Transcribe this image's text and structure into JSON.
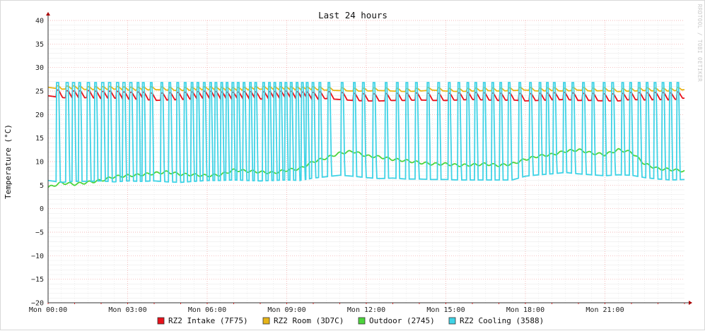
{
  "chart_data": {
    "type": "line",
    "title": "Last 24 hours",
    "ylabel": "Temperature (°C)",
    "ylim": [
      -20,
      40
    ],
    "yticks": [
      40,
      35,
      30,
      25,
      20,
      15,
      10,
      5,
      0,
      -5,
      -10,
      -15,
      -20
    ],
    "xlim": [
      0,
      24
    ],
    "xticks": [
      {
        "hour": 0,
        "label": "Mon 00:00"
      },
      {
        "hour": 3,
        "label": "Mon 03:00"
      },
      {
        "hour": 6,
        "label": "Mon 06:00"
      },
      {
        "hour": 9,
        "label": "Mon 09:00"
      },
      {
        "hour": 12,
        "label": "Mon 12:00"
      },
      {
        "hour": 15,
        "label": "Mon 15:00"
      },
      {
        "hour": 18,
        "label": "Mon 18:00"
      },
      {
        "hour": 21,
        "label": "Mon 21:00"
      }
    ],
    "grid": true,
    "legend_position": "bottom",
    "watermark": "RRDTOOL / TOBI OETIKER",
    "cooling_spike_hours": [
      0.32,
      0.68,
      0.92,
      1.15,
      1.48,
      1.75,
      2.02,
      2.28,
      2.58,
      2.82,
      3.08,
      3.35,
      3.55,
      3.85,
      4.25,
      4.55,
      4.85,
      5.12,
      5.38,
      5.6,
      5.85,
      6.08,
      6.28,
      6.5,
      6.7,
      6.92,
      7.12,
      7.35,
      7.58,
      7.78,
      8.08,
      8.3,
      8.5,
      8.72,
      8.92,
      9.12,
      9.35,
      9.55,
      9.72,
      9.95,
      10.2,
      10.55,
      11.05,
      11.5,
      11.85,
      12.25,
      12.7,
      13.12,
      13.48,
      13.85,
      14.28,
      14.68,
      15.08,
      15.45,
      15.78,
      16.08,
      16.4,
      16.72,
      17.02,
      17.35,
      17.75,
      18.15,
      18.5,
      18.78,
      19.05,
      19.42,
      19.75,
      20.15,
      20.5,
      20.92,
      21.25,
      21.62,
      21.92,
      22.25,
      22.55,
      22.85,
      23.15,
      23.42,
      23.7
    ],
    "series": [
      {
        "name": "RZ2 Intake (7F75)",
        "color": "#e8111a",
        "x": [
          0,
          0.5,
          1,
          1.5,
          2,
          2.5,
          3,
          3.5,
          4,
          4.5,
          5,
          5.5,
          6,
          6.5,
          7,
          7.5,
          8,
          8.5,
          9,
          9.5,
          10,
          10.5,
          11,
          11.5,
          12,
          12.5,
          13,
          13.5,
          14,
          14.5,
          15,
          15.5,
          16,
          16.5,
          17,
          17.5,
          18,
          18.5,
          19,
          19.5,
          20,
          20.5,
          21,
          21.5,
          22,
          22.5,
          23,
          23.5,
          24
        ],
        "y": [
          24.0,
          23.6,
          23.5,
          23.6,
          23.4,
          23.5,
          23.2,
          23.3,
          23.0,
          23.1,
          23.2,
          23.3,
          23.5,
          23.3,
          23.2,
          23.4,
          23.3,
          23.4,
          23.5,
          23.3,
          23.2,
          23.4,
          23.2,
          23.0,
          22.9,
          22.9,
          23.0,
          23.0,
          23.1,
          23.0,
          23.0,
          23.1,
          23.2,
          23.1,
          23.0,
          23.1,
          22.9,
          23.0,
          23.1,
          23.2,
          23.0,
          23.0,
          22.9,
          22.9,
          23.2,
          23.1,
          23.2,
          23.1,
          23.5
        ]
      },
      {
        "name": "RZ2 Room (3D7C)",
        "color": "#e6b417",
        "x": [
          0,
          0.5,
          1,
          1.5,
          2,
          2.5,
          3,
          3.5,
          4,
          4.5,
          5,
          5.5,
          6,
          6.5,
          7,
          7.5,
          8,
          8.5,
          9,
          9.5,
          10,
          10.5,
          11,
          11.5,
          12,
          12.5,
          13,
          13.5,
          14,
          14.5,
          15,
          15.5,
          16,
          16.5,
          17,
          17.5,
          18,
          18.5,
          19,
          19.5,
          20,
          20.5,
          21,
          21.5,
          22,
          22.5,
          23,
          23.5,
          24
        ],
        "y": [
          25.8,
          25.4,
          25.5,
          25.3,
          25.3,
          25.4,
          25.2,
          25.2,
          25.3,
          25.2,
          25.1,
          25.2,
          25.3,
          25.2,
          25.1,
          25.2,
          25.4,
          25.3,
          25.3,
          25.2,
          25.3,
          25.2,
          25.1,
          25.0,
          25.0,
          25.1,
          25.0,
          24.9,
          25.0,
          25.2,
          25.0,
          24.9,
          25.0,
          25.1,
          25.0,
          25.1,
          25.2,
          25.0,
          25.1,
          25.0,
          25.2,
          25.0,
          25.1,
          24.9,
          25.0,
          25.1,
          25.0,
          25.0,
          25.3
        ]
      },
      {
        "name": "Outdoor (2745)",
        "color": "#4cd43c",
        "x": [
          0,
          0.5,
          1,
          1.5,
          2,
          2.5,
          3,
          3.5,
          4,
          4.5,
          5,
          5.5,
          6,
          6.5,
          7,
          7.5,
          8,
          8.5,
          9,
          9.5,
          10,
          10.5,
          11,
          11.5,
          12,
          12.5,
          13,
          13.5,
          14,
          14.5,
          15,
          15.5,
          16,
          16.5,
          17,
          17.5,
          18,
          18.5,
          19,
          19.5,
          20,
          20.5,
          21,
          21.5,
          22,
          22.5,
          23,
          23.5,
          24
        ],
        "y": [
          4.5,
          5.5,
          5.2,
          5.6,
          6.0,
          6.8,
          7.0,
          7.2,
          7.5,
          7.8,
          7.3,
          7.2,
          7.0,
          7.2,
          8.2,
          8.0,
          7.8,
          7.6,
          8.2,
          8.5,
          10.0,
          10.8,
          11.8,
          12.2,
          11.2,
          11.0,
          10.5,
          10.2,
          9.8,
          9.5,
          9.5,
          9.2,
          9.3,
          9.5,
          9.2,
          9.5,
          10.5,
          11.2,
          11.5,
          12.2,
          12.5,
          11.8,
          11.5,
          12.5,
          12.0,
          9.5,
          8.5,
          8.3,
          8.0
        ]
      },
      {
        "name": "RZ2 Cooling (3588)",
        "color": "#3fd3e6",
        "x": [
          0,
          0.5,
          1,
          1.5,
          2,
          2.5,
          3,
          3.5,
          4,
          4.5,
          5,
          5.5,
          6,
          6.5,
          7,
          7.5,
          8,
          8.5,
          9,
          9.5,
          10,
          10.5,
          11,
          11.5,
          12,
          12.5,
          13,
          13.5,
          14,
          14.5,
          15,
          15.5,
          16,
          16.5,
          17,
          17.5,
          18,
          18.5,
          19,
          19.5,
          20,
          20.5,
          21,
          21.5,
          22,
          22.5,
          23,
          23.5,
          24
        ],
        "y": [
          6.0,
          5.6,
          5.8,
          5.8,
          5.9,
          5.7,
          5.9,
          5.8,
          5.9,
          5.7,
          5.6,
          5.8,
          6.0,
          6.0,
          6.1,
          6.0,
          5.9,
          6.0,
          6.1,
          6.0,
          6.5,
          6.8,
          7.1,
          6.9,
          6.6,
          6.4,
          6.5,
          6.3,
          6.3,
          6.2,
          6.2,
          6.1,
          6.1,
          6.1,
          6.1,
          6.1,
          6.9,
          7.2,
          7.4,
          7.7,
          7.4,
          7.2,
          7.0,
          7.2,
          7.1,
          6.6,
          6.3,
          6.1,
          6.2
        ]
      }
    ]
  }
}
